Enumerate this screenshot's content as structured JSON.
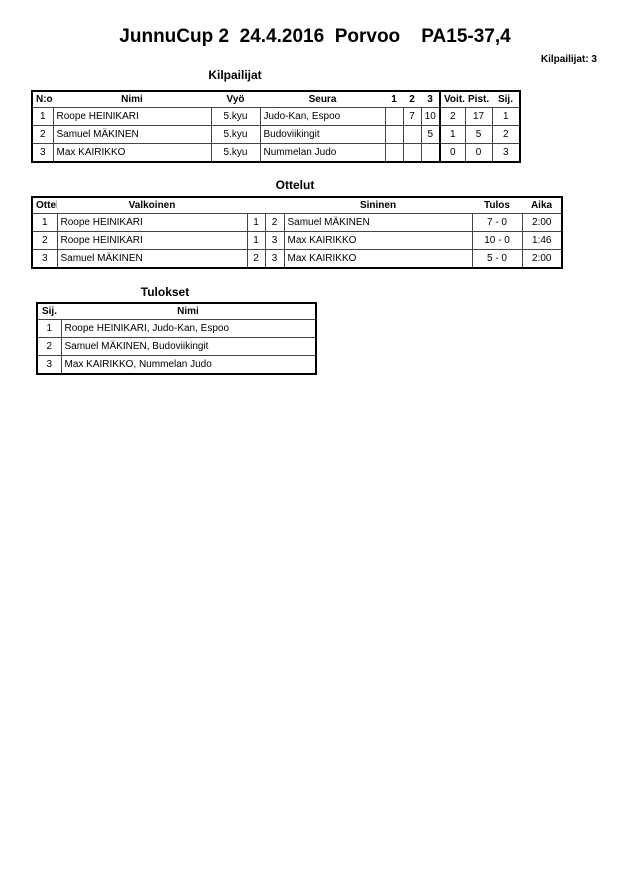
{
  "title": "JunnuCup 2  24.4.2016  Porvoo    PA15-37,4",
  "competitor_count": "Kilpailijat: 3",
  "competitors": {
    "heading": "Kilpailijat",
    "columns": [
      "N:o",
      "Nimi",
      "Vyö",
      "Seura",
      "1",
      "2",
      "3",
      "Voit.",
      "Pist.",
      "Sij."
    ],
    "rows": [
      [
        "1",
        "Roope HEINIKARI",
        "5.kyu",
        "Judo-Kan, Espoo",
        "",
        "7",
        "10",
        "2",
        "17",
        "1"
      ],
      [
        "2",
        "Samuel MÄKINEN",
        "5.kyu",
        "Budoviikingit",
        "",
        "",
        "5",
        "1",
        "5",
        "2"
      ],
      [
        "3",
        "Max KAIRIKKO",
        "5.kyu",
        "Nummelan Judo",
        "",
        "",
        "",
        "0",
        "0",
        "3"
      ]
    ]
  },
  "matches": {
    "heading": "Ottelut",
    "columns": [
      "Ottelu",
      "Valkoinen",
      "",
      "",
      "Sininen",
      "Tulos",
      "Aika"
    ],
    "rows": [
      [
        "1",
        "Roope HEINIKARI",
        "1",
        "2",
        "Samuel MÄKINEN",
        "7 - 0",
        "2:00"
      ],
      [
        "2",
        "Roope HEINIKARI",
        "1",
        "3",
        "Max KAIRIKKO",
        "10 - 0",
        "1:46"
      ],
      [
        "3",
        "Samuel MÄKINEN",
        "2",
        "3",
        "Max KAIRIKKO",
        "5 - 0",
        "2:00"
      ]
    ]
  },
  "results": {
    "heading": "Tulokset",
    "columns": [
      "Sij.",
      "Nimi"
    ],
    "rows": [
      [
        "1",
        "Roope HEINIKARI, Judo-Kan, Espoo"
      ],
      [
        "2",
        "Samuel MÄKINEN, Budoviikingit"
      ],
      [
        "3",
        "Max KAIRIKKO, Nummelan Judo"
      ]
    ]
  }
}
